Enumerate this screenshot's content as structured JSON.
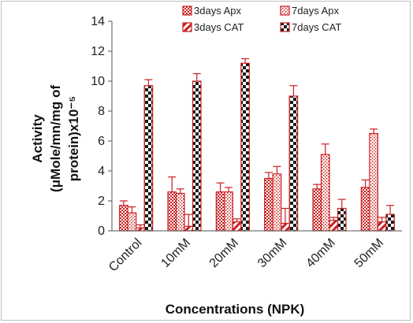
{
  "chart_data": {
    "type": "bar",
    "title": "",
    "xlabel": "Concentrations (NPK)",
    "ylabel_lines": [
      "Activity",
      "(μMole/mn/mg of",
      "protein)x10⁻⁵"
    ],
    "ylim": [
      0,
      14
    ],
    "yticks": [
      0,
      2,
      4,
      6,
      8,
      10,
      12,
      14
    ],
    "categories": [
      "Control",
      "10mM",
      "20mM",
      "30mM",
      "40mM",
      "50mM"
    ],
    "legend_position": "top-right",
    "series": [
      {
        "name": "3days Apx",
        "values": [
          1.7,
          2.6,
          2.6,
          3.5,
          2.8,
          2.9
        ],
        "errors": [
          0.3,
          1.0,
          0.6,
          0.4,
          0.3,
          0.5
        ],
        "pattern": "dense-check",
        "color": "#cc1f1f"
      },
      {
        "name": "7days Apx",
        "values": [
          1.2,
          2.5,
          2.6,
          3.8,
          5.1,
          6.5
        ],
        "errors": [
          0.4,
          0.3,
          0.3,
          0.5,
          0.7,
          0.3
        ],
        "pattern": "dots",
        "color": "#cc1f1f"
      },
      {
        "name": "3days CAT",
        "values": [
          0.2,
          0.3,
          0.6,
          0.5,
          0.7,
          0.6
        ],
        "errors": [
          0.2,
          0.8,
          0.2,
          1.0,
          0.2,
          0.3
        ],
        "pattern": "hatch",
        "color": "#cc1f1f"
      },
      {
        "name": "7days CAT",
        "values": [
          9.7,
          10.0,
          11.2,
          9.0,
          1.5,
          1.1
        ],
        "errors": [
          0.4,
          0.5,
          0.3,
          0.7,
          0.6,
          0.6
        ],
        "pattern": "big-check",
        "color": "#cc1f1f"
      }
    ]
  }
}
